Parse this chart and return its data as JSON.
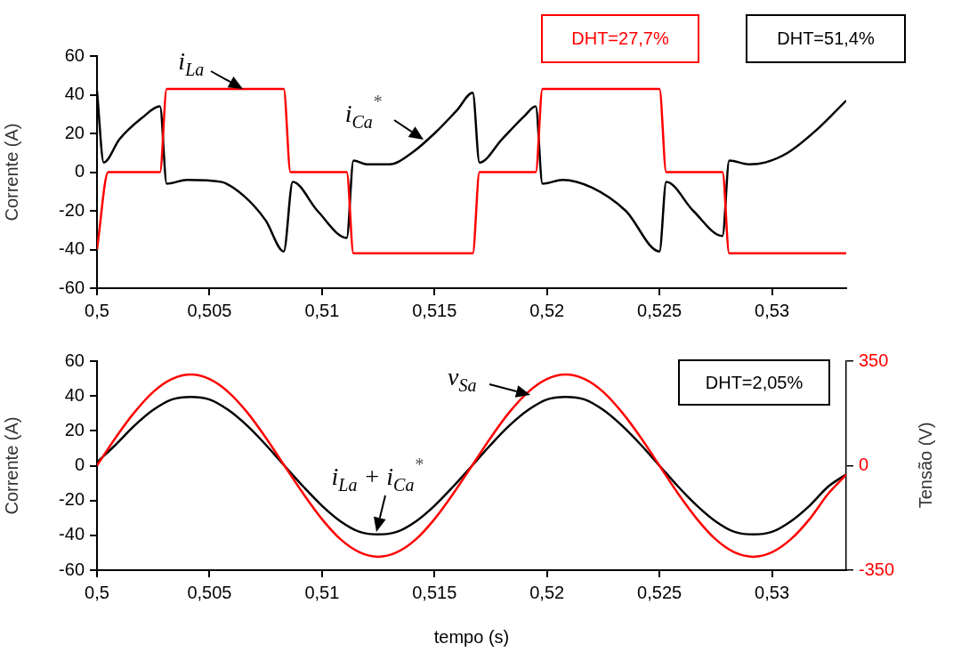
{
  "chart_data": [
    {
      "type": "line",
      "ylabel": "Corrente (A)",
      "xlim": [
        0.5,
        0.5333
      ],
      "ylim": [
        -60,
        60
      ],
      "xticks": [
        {
          "value": 0.5,
          "label": "0,5"
        },
        {
          "value": 0.505,
          "label": "0,505"
        },
        {
          "value": 0.51,
          "label": "0,51"
        },
        {
          "value": 0.515,
          "label": "0,515"
        },
        {
          "value": 0.52,
          "label": "0,52"
        },
        {
          "value": 0.525,
          "label": "0,525"
        },
        {
          "value": 0.53,
          "label": "0,53"
        }
      ],
      "yticks": [
        -60,
        -40,
        -20,
        0,
        20,
        40,
        60
      ],
      "grid": false,
      "legend": false,
      "marker": "none",
      "line_style": "solid",
      "series": [
        {
          "color": "#ff0000",
          "x": [
            0.5,
            0.5005,
            0.5028,
            0.5031,
            0.5083,
            0.5086,
            0.5111,
            0.5114,
            0.5167,
            0.517,
            0.5195,
            0.5198,
            0.525,
            0.5253,
            0.5278,
            0.5281,
            0.5333
          ],
          "values": [
            -40,
            0,
            0,
            43,
            43,
            0,
            0,
            -42,
            -42,
            0,
            0,
            43,
            43,
            0,
            0,
            -42,
            -42
          ]
        },
        {
          "color": "#000000",
          "x": [
            0.5,
            0.5003,
            0.501,
            0.502,
            0.5028,
            0.5031,
            0.504,
            0.5055,
            0.5065,
            0.5075,
            0.5083,
            0.5087,
            0.5098,
            0.5111,
            0.5114,
            0.512,
            0.513,
            0.514,
            0.515,
            0.516,
            0.5167,
            0.517,
            0.518,
            0.519,
            0.5195,
            0.5198,
            0.5207,
            0.522,
            0.5235,
            0.525,
            0.5253,
            0.5265,
            0.5278,
            0.5281,
            0.529,
            0.5297,
            0.5307,
            0.532,
            0.5333
          ],
          "values": [
            42,
            5,
            17,
            28,
            34,
            -6,
            -4,
            -5,
            -12,
            -25,
            -41,
            -5,
            -20,
            -34,
            6,
            4,
            4,
            10,
            20,
            32,
            41,
            5,
            17,
            29,
            34,
            -6,
            -4,
            -8,
            -20,
            -41,
            -5,
            -20,
            -33,
            6,
            4,
            5,
            10,
            22,
            37
          ]
        }
      ],
      "annotations": [
        {
          "text": "i$_{La}$",
          "x": 0.5065,
          "y": 43
        },
        {
          "text": "i$_{Ca}$$^{*}$",
          "x": 0.5145,
          "y": 17
        },
        "DHT=27,7%",
        "DHT=51,4%"
      ]
    },
    {
      "type": "line",
      "xlabel": "tempo (s)",
      "ylabel": "Corrente (A)",
      "y2label": "Tensão (V)",
      "xlim": [
        0.5,
        0.5333
      ],
      "ylim": [
        -60,
        60
      ],
      "y2lim": [
        -350,
        350
      ],
      "xticks": [
        {
          "value": 0.5,
          "label": "0,5"
        },
        {
          "value": 0.505,
          "label": "0,505"
        },
        {
          "value": 0.51,
          "label": "0,51"
        },
        {
          "value": 0.515,
          "label": "0,515"
        },
        {
          "value": 0.52,
          "label": "0,52"
        },
        {
          "value": 0.525,
          "label": "0,525"
        },
        {
          "value": 0.53,
          "label": "0,53"
        }
      ],
      "yticks": [
        -60,
        -40,
        -20,
        0,
        20,
        40,
        60
      ],
      "y2ticks": [
        -350,
        0,
        350
      ],
      "grid": false,
      "legend": false,
      "marker": "none",
      "line_style": "solid",
      "x": [
        0.5,
        0.50083,
        0.50167,
        0.5025,
        0.50333,
        0.50417,
        0.505,
        0.50583,
        0.50667,
        0.5075,
        0.50833,
        0.50917,
        0.51,
        0.51083,
        0.51167,
        0.5125,
        0.51333,
        0.51417,
        0.515,
        0.51583,
        0.51667,
        0.5175,
        0.51833,
        0.51917,
        0.52,
        0.52083,
        0.52167,
        0.5225,
        0.52333,
        0.52417,
        0.525,
        0.52583,
        0.52667,
        0.5275,
        0.52833,
        0.52917,
        0.53,
        0.53083,
        0.53167,
        0.5325,
        0.5333
      ],
      "series": [
        {
          "color": "#000000",
          "values": [
            2,
            12,
            23,
            32,
            38,
            39.5,
            38,
            32,
            23,
            12,
            0,
            -12,
            -23,
            -32,
            -38,
            -39.5,
            -38,
            -32,
            -23,
            -12,
            0,
            12,
            23,
            32,
            38,
            39.5,
            38,
            32,
            23,
            12,
            0,
            -12,
            -23,
            -32,
            -38,
            -39.5,
            -38,
            -32,
            -23,
            -12,
            -5
          ]
        },
        {
          "color": "#ff0000",
          "axis": "y2",
          "values": [
            0,
            94,
            179,
            247,
            290,
            305,
            290,
            247,
            179,
            94,
            0,
            -94,
            -179,
            -247,
            -290,
            -305,
            -290,
            -247,
            -179,
            -94,
            0,
            94,
            179,
            247,
            290,
            305,
            290,
            247,
            179,
            94,
            0,
            -94,
            -179,
            -247,
            -290,
            -305,
            -290,
            -247,
            -179,
            -94,
            -30
          ]
        }
      ],
      "annotations": [
        "v$_{Sa}$",
        {
          "text": "i$_{La}$ + i$_{Ca}$$^{*}$",
          "x": 0.5124,
          "y": -38
        },
        "DHT=2,05%"
      ]
    }
  ]
}
